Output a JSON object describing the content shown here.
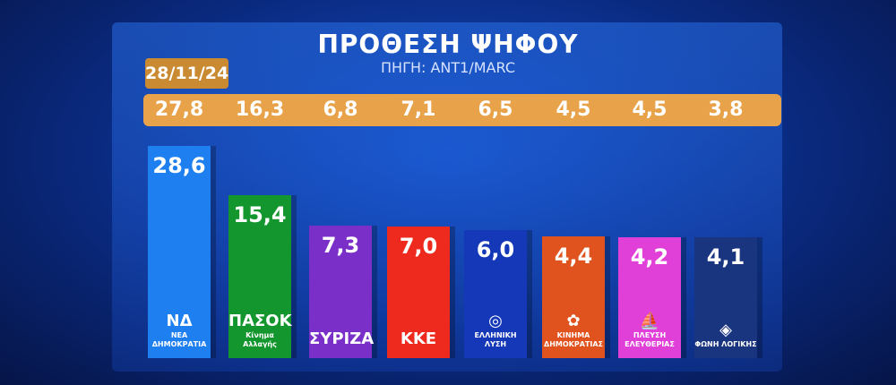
{
  "chart_data": {
    "type": "bar",
    "title": "ΠΡΟΘΕΣΗ ΨΗΦΟΥ",
    "subtitle": "ΠΗΓΗ: ANT1/MARC",
    "previous_label": "28/11/24",
    "categories": [
      "ΝΕΑ ΔΗΜΟΚΡΑΤΙΑ",
      "ΠΑΣΟΚ",
      "ΣΥΡΙΖΑ",
      "ΚΚΕ",
      "ΕΛΛΗΝΙΚΗ ΛΥΣΗ",
      "ΚΙΝΗΜΑ ΔΗΜΟΚΡΑΤΙΑΣ",
      "ΠΛΕΥΣΗ ΕΛΕΥΘΕΡΙΑΣ",
      "ΦΩΝΗ ΛΟΓΙΚΗΣ"
    ],
    "values": [
      "28,6",
      "15,4",
      "7,3",
      "7,0",
      "6,0",
      "4,4",
      "4,2",
      "4,1"
    ],
    "previous_values": [
      "27,8",
      "16,3",
      "6,8",
      "7,1",
      "6,5",
      "4,5",
      "4,5",
      "3,8"
    ],
    "logos": [
      {
        "mark": "ΝΔ",
        "sub": "ΝΕΑ ΔΗΜΟΚΡΑΤΙΑ"
      },
      {
        "mark": "ΠΑΣΟΚ",
        "sub": "Κίνημα Αλλαγής"
      },
      {
        "mark": "ΣΥΡΙΖΑ",
        "sub": ""
      },
      {
        "mark": "ΚΚΕ",
        "sub": ""
      },
      {
        "mark": "◎",
        "sub": "ΕΛΛΗΝΙΚΗ ΛΥΣΗ"
      },
      {
        "mark": "✿",
        "sub": "ΚΙΝΗΜΑ ΔΗΜΟΚΡΑΤΙΑΣ"
      },
      {
        "mark": "⛵",
        "sub": "ΠΛΕΥΣΗ ΕΛΕΥΘΕΡΙΑΣ"
      },
      {
        "mark": "◈",
        "sub": "ΦΩΝΗ ΛΟΓΙΚΗΣ"
      }
    ],
    "colors": [
      "#1e7ff0",
      "#14962e",
      "#7a2fc8",
      "#ee2a1e",
      "#1438b8",
      "#e0521e",
      "#e040d8",
      "#1a3580"
    ],
    "grid": false
  }
}
